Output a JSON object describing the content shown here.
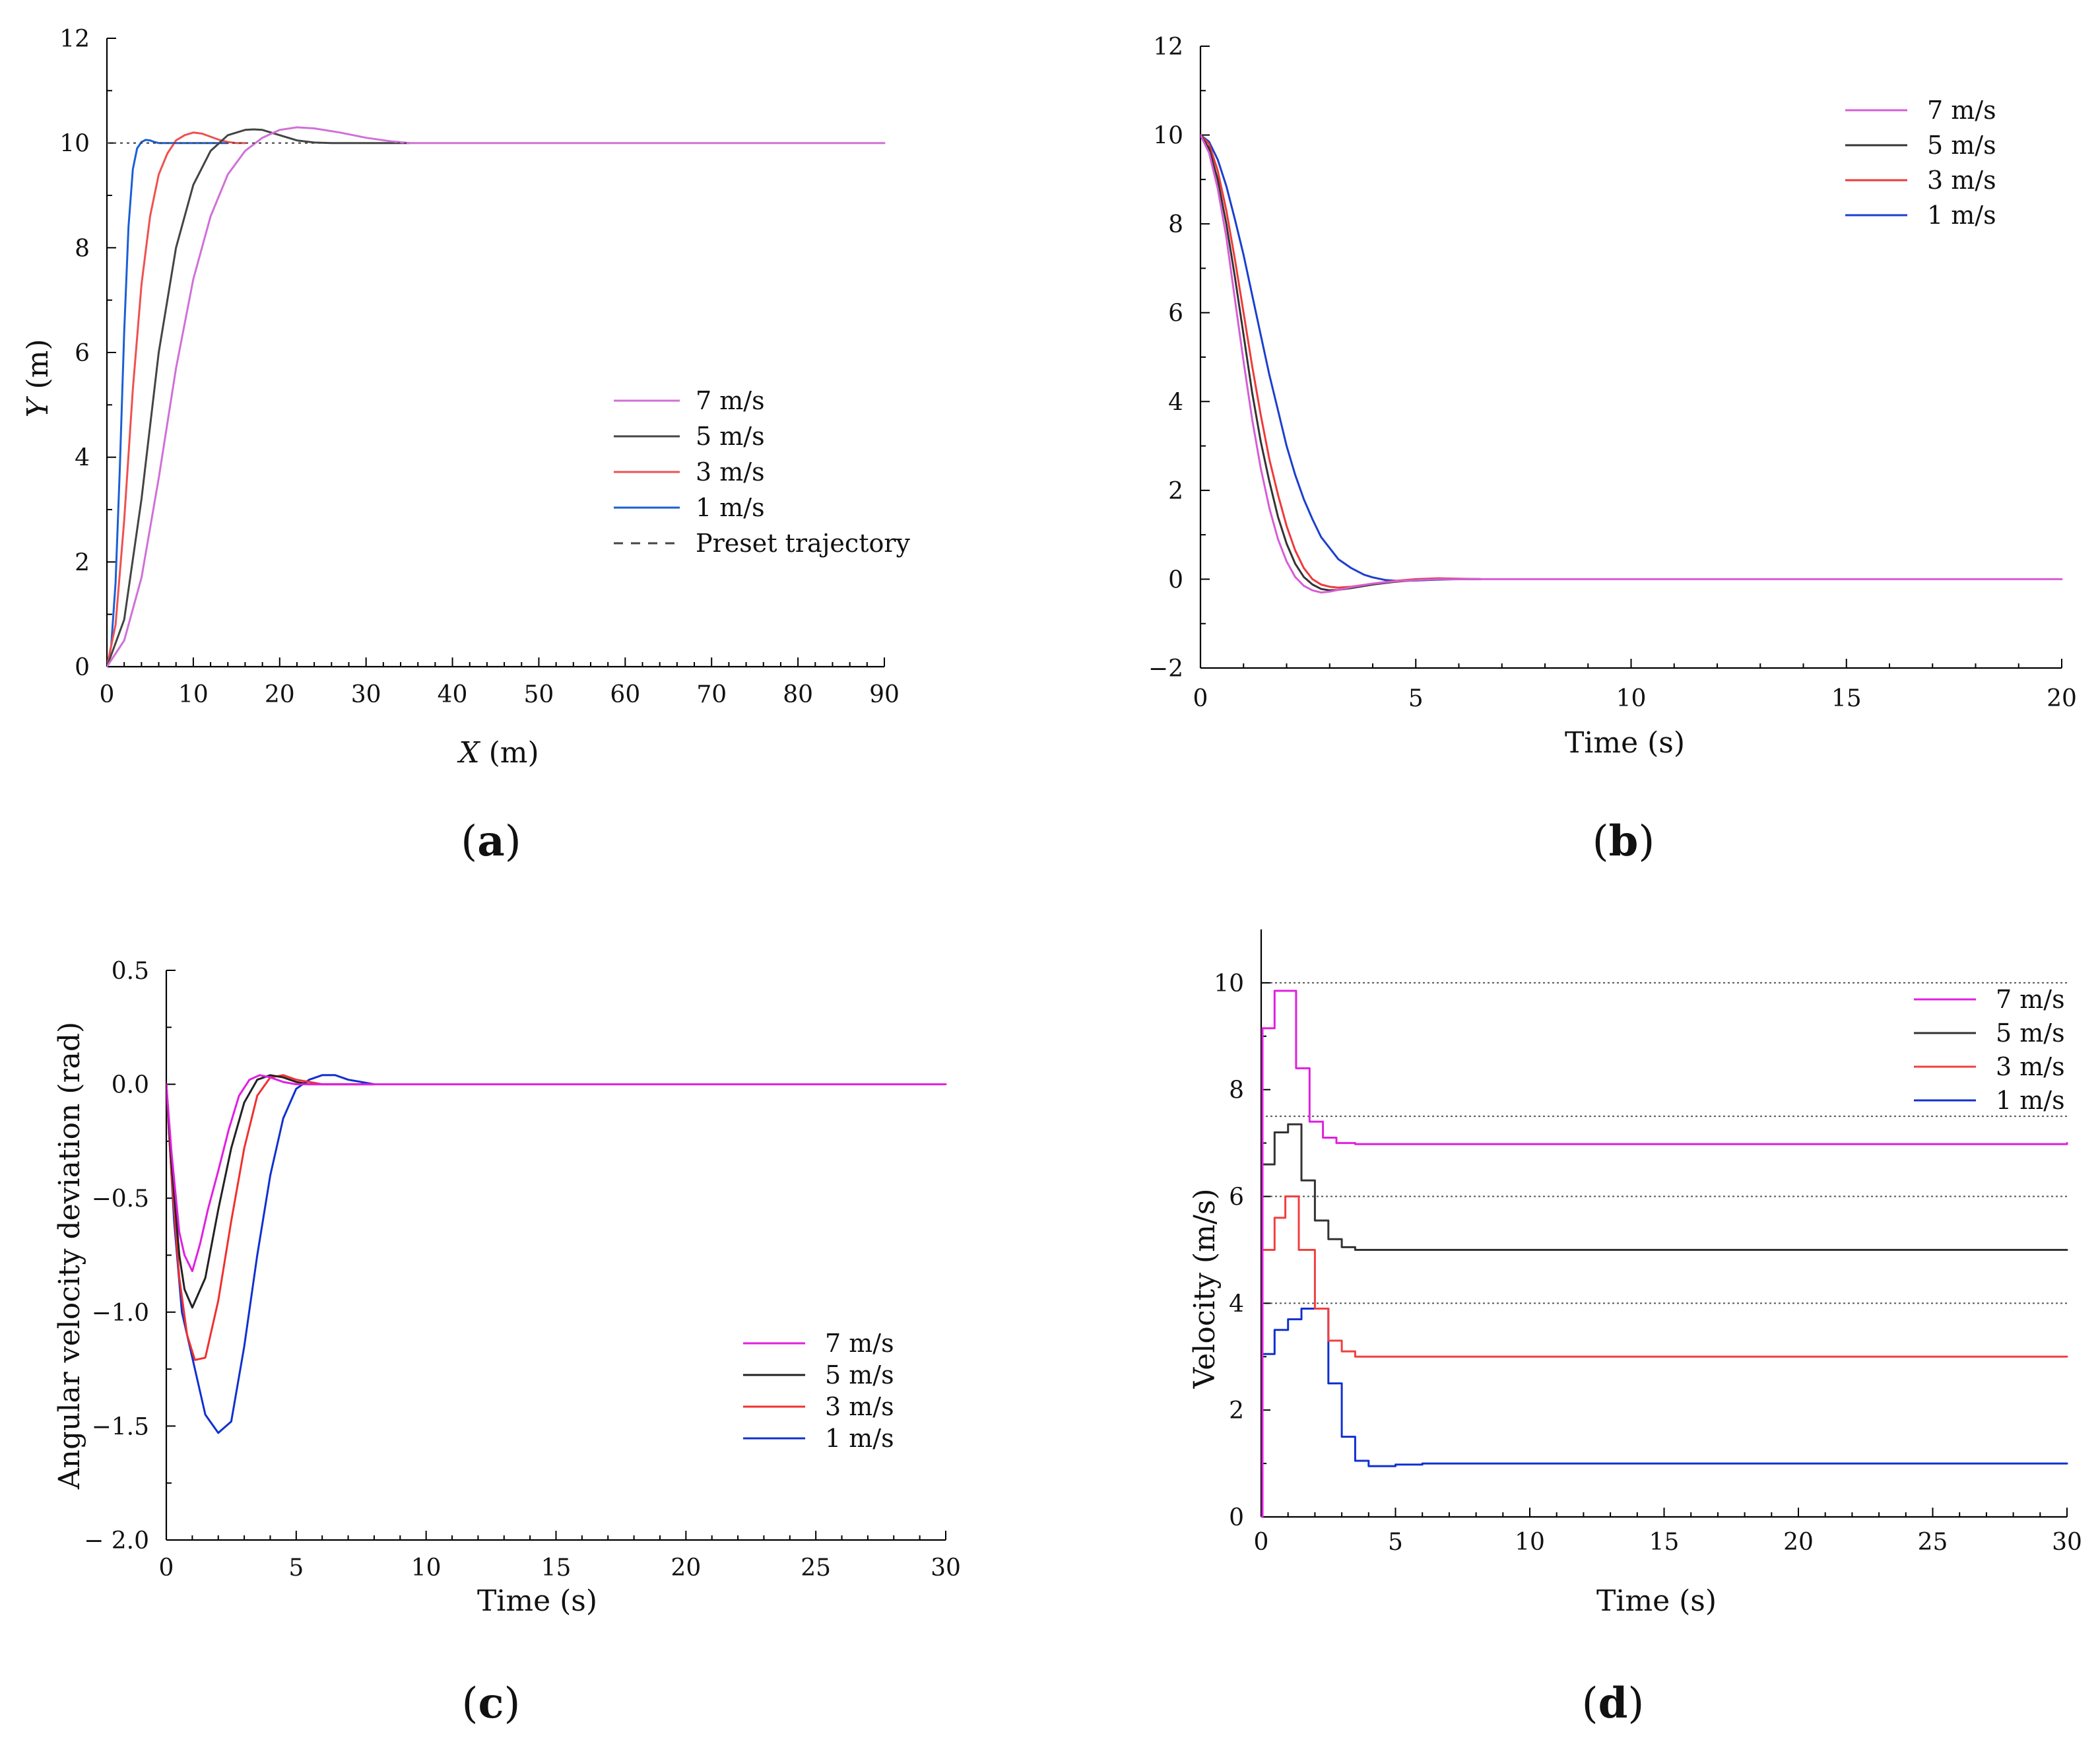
{
  "figure_captions": [
    "a",
    "b",
    "c",
    "d"
  ],
  "chart_data": [
    {
      "id": "a",
      "type": "line",
      "caption": "a",
      "xlabel_var": "X",
      "xlabel_unit": " (m)",
      "ylabel_var": "Y",
      "ylabel_unit": " (m)",
      "xlim": [
        0,
        90
      ],
      "ylim": [
        0,
        12
      ],
      "xticks": [
        0,
        10,
        20,
        30,
        40,
        50,
        60,
        70,
        80,
        90
      ],
      "yticks": [
        0,
        2,
        4,
        6,
        8,
        10,
        12
      ],
      "xtick_labels": [
        "0",
        "10",
        "20",
        "30",
        "40",
        "50",
        "60",
        "70",
        "80",
        "90"
      ],
      "ytick_labels": [
        "0",
        "2",
        "4",
        "6",
        "8",
        "10",
        "12"
      ],
      "legend_position": "center-right",
      "series": [
        {
          "name": "7 m/s",
          "color": "#d070d8",
          "x": [
            0,
            2,
            4,
            6,
            8,
            10,
            12,
            14,
            16,
            18,
            20,
            22,
            24,
            27,
            30,
            33,
            35,
            40,
            50,
            60,
            70,
            80,
            90
          ],
          "y": [
            0,
            0.5,
            1.7,
            3.6,
            5.7,
            7.4,
            8.6,
            9.4,
            9.85,
            10.1,
            10.25,
            10.3,
            10.28,
            10.2,
            10.1,
            10.03,
            10.0,
            10.0,
            10.0,
            10.0,
            10.0,
            10.0,
            10.0
          ]
        },
        {
          "name": "5 m/s",
          "color": "#444444",
          "x": [
            0,
            2,
            4,
            6,
            8,
            10,
            12,
            14,
            16,
            17,
            18,
            20,
            22,
            24,
            26,
            30,
            35
          ],
          "y": [
            0,
            0.9,
            3.2,
            6.0,
            8.0,
            9.2,
            9.85,
            10.15,
            10.25,
            10.26,
            10.25,
            10.15,
            10.05,
            10.01,
            10.0,
            10.0,
            10.0
          ]
        },
        {
          "name": "3 m/s",
          "color": "#f05050",
          "x": [
            0,
            1,
            2,
            3,
            4,
            5,
            6,
            7,
            8,
            9,
            10,
            11,
            12,
            13,
            14,
            15,
            16
          ],
          "y": [
            0,
            0.8,
            2.8,
            5.3,
            7.3,
            8.6,
            9.4,
            9.8,
            10.05,
            10.15,
            10.2,
            10.18,
            10.12,
            10.06,
            10.02,
            10.0,
            10.0
          ]
        },
        {
          "name": "1 m/s",
          "color": "#1a5fd6",
          "x": [
            0,
            0.5,
            1,
            1.5,
            2,
            2.5,
            3,
            3.5,
            4,
            4.5,
            5,
            5.5,
            6,
            7,
            8,
            10,
            12,
            14
          ],
          "y": [
            0,
            0.4,
            1.6,
            3.8,
            6.4,
            8.4,
            9.5,
            9.9,
            10.02,
            10.06,
            10.05,
            10.02,
            10.0,
            10.0,
            10.0,
            10.0,
            10.0,
            10.0
          ]
        }
      ],
      "reference": {
        "name": "Preset trajectory",
        "color": "#444444",
        "x": [
          0,
          35
        ],
        "y": [
          10,
          10
        ]
      }
    },
    {
      "id": "b",
      "type": "line",
      "caption": "b",
      "xlabel": "Time (s)",
      "ylabel": "",
      "xlim": [
        0,
        20
      ],
      "ylim": [
        -2,
        12
      ],
      "xticks": [
        0,
        5,
        10,
        15,
        20
      ],
      "yticks": [
        -2,
        0,
        2,
        4,
        6,
        8,
        10,
        12
      ],
      "xtick_labels": [
        "0",
        "5",
        "10",
        "15",
        "20"
      ],
      "ytick_labels": [
        "−2",
        "0",
        "2",
        "4",
        "6",
        "8",
        "10",
        "12"
      ],
      "legend_position": "top-right",
      "series": [
        {
          "name": "7 m/s",
          "color": "#d65ed6",
          "x": [
            0,
            0.2,
            0.4,
            0.6,
            0.8,
            1.0,
            1.2,
            1.4,
            1.6,
            1.8,
            2.0,
            2.2,
            2.4,
            2.6,
            2.8,
            3.0,
            3.2,
            3.5,
            4.0,
            4.5,
            5.0,
            5.5,
            6.0,
            8,
            10,
            12,
            14,
            16,
            18,
            20
          ],
          "y": [
            10,
            9.6,
            8.8,
            7.7,
            6.3,
            4.9,
            3.6,
            2.5,
            1.6,
            0.9,
            0.4,
            0.05,
            -0.15,
            -0.25,
            -0.3,
            -0.28,
            -0.24,
            -0.18,
            -0.1,
            -0.05,
            -0.02,
            0,
            0,
            0,
            0,
            0,
            0,
            0,
            0,
            0
          ]
        },
        {
          "name": "5 m/s",
          "color": "#333333",
          "x": [
            0,
            0.2,
            0.4,
            0.6,
            0.8,
            1.0,
            1.2,
            1.4,
            1.6,
            1.8,
            2.0,
            2.2,
            2.4,
            2.6,
            2.8,
            3.0,
            3.2,
            3.5,
            4.0,
            4.5,
            5.0,
            5.5,
            6.0,
            6.5
          ],
          "y": [
            10,
            9.7,
            9.0,
            8.0,
            6.8,
            5.5,
            4.2,
            3.1,
            2.2,
            1.4,
            0.8,
            0.35,
            0.05,
            -0.12,
            -0.22,
            -0.25,
            -0.24,
            -0.2,
            -0.12,
            -0.06,
            -0.02,
            0,
            0,
            0
          ]
        },
        {
          "name": "3 m/s",
          "color": "#ee3a3a",
          "x": [
            0,
            0.2,
            0.4,
            0.6,
            0.8,
            1.0,
            1.2,
            1.4,
            1.6,
            1.8,
            2.0,
            2.2,
            2.4,
            2.6,
            2.8,
            3.0,
            3.2,
            3.5,
            4.0,
            4.5,
            5.0,
            5.5,
            6.0,
            6.5
          ],
          "y": [
            10,
            9.8,
            9.2,
            8.3,
            7.2,
            6.0,
            4.8,
            3.7,
            2.7,
            1.9,
            1.2,
            0.65,
            0.25,
            0.0,
            -0.12,
            -0.17,
            -0.19,
            -0.17,
            -0.1,
            -0.04,
            0,
            0.02,
            0.01,
            0
          ]
        },
        {
          "name": "1 m/s",
          "color": "#1b3fd0",
          "x": [
            0,
            0.2,
            0.4,
            0.6,
            0.8,
            1.0,
            1.2,
            1.4,
            1.6,
            1.8,
            2.0,
            2.2,
            2.4,
            2.6,
            2.8,
            3.0,
            3.2,
            3.5,
            3.8,
            4.0,
            4.3,
            4.6,
            5.0,
            5.5,
            6.0,
            6.5
          ],
          "y": [
            10,
            9.85,
            9.45,
            8.85,
            8.1,
            7.3,
            6.4,
            5.5,
            4.6,
            3.8,
            3.0,
            2.35,
            1.8,
            1.35,
            0.95,
            0.7,
            0.45,
            0.25,
            0.1,
            0.04,
            -0.02,
            -0.04,
            -0.03,
            -0.01,
            0,
            0
          ]
        }
      ]
    },
    {
      "id": "c",
      "type": "line",
      "caption": "c",
      "xlabel": "Time (s)",
      "ylabel": "Angular velocity deviation (rad)",
      "xlim": [
        0,
        30
      ],
      "ylim": [
        -2.0,
        0.5
      ],
      "xticks": [
        0,
        5,
        10,
        15,
        20,
        25,
        30
      ],
      "yticks": [
        -2.0,
        -1.5,
        -1.0,
        -0.5,
        0.0,
        0.5
      ],
      "xtick_labels": [
        "0",
        "5",
        "10",
        "15",
        "20",
        "25",
        "30"
      ],
      "ytick_labels": [
        "− 2.0",
        "−1.5",
        "−1.0",
        "−0.5",
        "0.0",
        "0.5"
      ],
      "legend_position": "bottom-right",
      "series": [
        {
          "name": "7 m/s",
          "color": "#e020e0",
          "x": [
            0,
            0.2,
            0.5,
            0.7,
            1.0,
            1.3,
            1.6,
            2.0,
            2.4,
            2.8,
            3.2,
            3.6,
            4.0,
            4.5,
            5.0,
            5.5,
            6,
            8,
            10,
            15,
            20,
            25,
            30
          ],
          "y": [
            0,
            -0.3,
            -0.65,
            -0.75,
            -0.82,
            -0.7,
            -0.55,
            -0.38,
            -0.2,
            -0.05,
            0.02,
            0.04,
            0.03,
            0.01,
            0,
            0,
            0,
            0,
            0,
            0,
            0,
            0,
            0
          ]
        },
        {
          "name": "5 m/s",
          "color": "#222222",
          "x": [
            0,
            0.2,
            0.5,
            0.7,
            1.0,
            1.5,
            2.0,
            2.5,
            3.0,
            3.5,
            4.0,
            4.5,
            5.0,
            5.5,
            6,
            7,
            8
          ],
          "y": [
            0,
            -0.35,
            -0.75,
            -0.9,
            -0.98,
            -0.85,
            -0.55,
            -0.28,
            -0.08,
            0.02,
            0.04,
            0.03,
            0.01,
            0,
            0,
            0,
            0
          ]
        },
        {
          "name": "3 m/s",
          "color": "#f03030",
          "x": [
            0,
            0.2,
            0.5,
            0.8,
            1.1,
            1.5,
            2.0,
            2.5,
            3.0,
            3.5,
            4.0,
            4.5,
            5.0,
            5.5,
            6,
            7,
            8
          ],
          "y": [
            0,
            -0.4,
            -0.85,
            -1.1,
            -1.21,
            -1.2,
            -0.95,
            -0.6,
            -0.28,
            -0.05,
            0.03,
            0.04,
            0.02,
            0.01,
            0,
            0,
            0
          ]
        },
        {
          "name": "1 m/s",
          "color": "#1030d0",
          "x": [
            0,
            0.3,
            0.6,
            1.0,
            1.5,
            2.0,
            2.5,
            3.0,
            3.5,
            4.0,
            4.5,
            5.0,
            5.5,
            6.0,
            6.5,
            7.0,
            7.5,
            8.0
          ],
          "y": [
            0,
            -0.6,
            -1.0,
            -1.2,
            -1.45,
            -1.53,
            -1.48,
            -1.15,
            -0.75,
            -0.4,
            -0.15,
            -0.02,
            0.02,
            0.04,
            0.04,
            0.02,
            0.01,
            0
          ]
        }
      ]
    },
    {
      "id": "d",
      "type": "line",
      "caption": "d",
      "xlabel": "Time (s)",
      "ylabel": "Velocity (m/s)",
      "xlim": [
        0,
        30
      ],
      "ylim": [
        0,
        11
      ],
      "xticks": [
        0,
        5,
        10,
        15,
        20,
        25,
        30
      ],
      "yticks": [
        0,
        2,
        4,
        6,
        8,
        10
      ],
      "xtick_labels": [
        "0",
        "5",
        "10",
        "15",
        "20",
        "25",
        "30"
      ],
      "ytick_labels": [
        "0",
        "2",
        "4",
        "6",
        "8",
        "10"
      ],
      "reference_lines_y": [
        4,
        6,
        7.5,
        10
      ],
      "legend_position": "top-right",
      "series": [
        {
          "name": "7 m/s",
          "color": "#e020e0",
          "step": true,
          "x": [
            0,
            0.05,
            0.5,
            0.8,
            1.3,
            1.8,
            2.3,
            2.8,
            3.5,
            30
          ],
          "y": [
            0,
            9.15,
            9.85,
            9.85,
            8.4,
            7.4,
            7.1,
            7.0,
            6.98,
            7.0
          ]
        },
        {
          "name": "5 m/s",
          "color": "#333333",
          "step": true,
          "x": [
            0,
            0.05,
            0.5,
            1.0,
            1.5,
            2.0,
            2.5,
            3.0,
            3.5,
            30
          ],
          "y": [
            0,
            6.6,
            7.2,
            7.35,
            6.3,
            5.55,
            5.2,
            5.05,
            5.0,
            5.0
          ]
        },
        {
          "name": "3 m/s",
          "color": "#f04040",
          "step": true,
          "x": [
            0,
            0.05,
            0.5,
            0.9,
            1.4,
            2.0,
            2.5,
            3.0,
            3.5,
            4.0,
            30
          ],
          "y": [
            0,
            5.0,
            5.6,
            6.0,
            5.0,
            3.9,
            3.3,
            3.1,
            3.0,
            3.0,
            3.0
          ]
        },
        {
          "name": "1 m/s",
          "color": "#1030d0",
          "step": true,
          "x": [
            0,
            0.05,
            0.5,
            1.0,
            1.5,
            2.0,
            2.5,
            3.0,
            3.5,
            4.0,
            5.0,
            6.0,
            30
          ],
          "y": [
            0,
            3.05,
            3.5,
            3.7,
            3.9,
            3.9,
            2.5,
            1.5,
            1.05,
            0.95,
            0.98,
            1.0,
            1.0
          ]
        }
      ]
    }
  ]
}
